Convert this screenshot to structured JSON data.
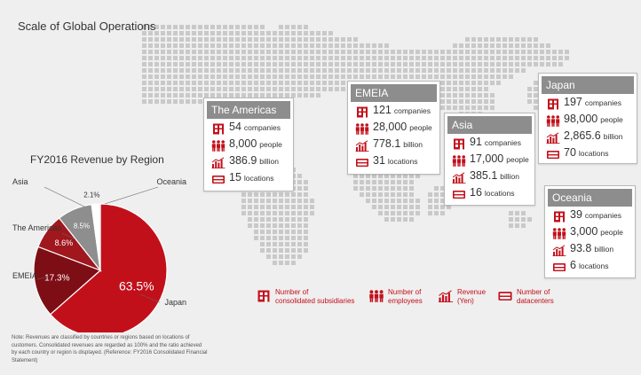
{
  "page": {
    "title": "Scale of Global Operations"
  },
  "colors": {
    "accent": "#c2101b",
    "header_gray": "#8d8d8d",
    "map_dot": "#c9c9c9"
  },
  "regions": [
    {
      "name": "The Americas",
      "companies": "54",
      "people": "8,000",
      "revenue": "386.9",
      "locations": "15"
    },
    {
      "name": "EMEIA",
      "companies": "121",
      "people": "28,000",
      "revenue": "778.1",
      "locations": "31"
    },
    {
      "name": "Asia",
      "companies": "91",
      "people": "17,000",
      "revenue": "385.1",
      "locations": "16"
    },
    {
      "name": "Japan",
      "companies": "197",
      "people": "98,000",
      "revenue": "2,865.6",
      "locations": "70"
    },
    {
      "name": "Oceania",
      "companies": "39",
      "people": "3,000",
      "revenue": "93.8",
      "locations": "6"
    }
  ],
  "units": {
    "companies": "companies",
    "people": "people",
    "revenue": "billion",
    "locations": "locations"
  },
  "legend": [
    {
      "icon": "building-icon",
      "line1": "Number of",
      "line2": "consolidated subsidiaries"
    },
    {
      "icon": "people-icon",
      "line1": "Number of",
      "line2": "employees"
    },
    {
      "icon": "bar-chart-icon",
      "line1": "Revenue",
      "line2": "(Yen)"
    },
    {
      "icon": "datacenter-icon",
      "line1": "Number of",
      "line2": "datacenters"
    }
  ],
  "chart_data": {
    "type": "pie",
    "title": "FY2016 Revenue by Region",
    "slices": [
      {
        "label": "Japan",
        "value": 63.5,
        "display": "63.5%",
        "color": "#c2101b"
      },
      {
        "label": "EMEIA",
        "value": 17.3,
        "display": "17.3%",
        "color": "#7e0e15"
      },
      {
        "label": "The Americas",
        "value": 8.6,
        "display": "8.6%",
        "color": "#a0171e"
      },
      {
        "label": "Asia",
        "value": 8.5,
        "display": "8.5%",
        "color": "#8e8e8e"
      },
      {
        "label": "Oceania",
        "value": 2.1,
        "display": "2.1%",
        "color": "#ffffff"
      }
    ]
  },
  "note": "Note: Revenues are classified by countries or regions based on locations of customers. Consolidated revenues are regarded as 100% and the ratio achieved by each country or region is displayed. (Reference: FY2016 Consolidated Financial Statement)"
}
